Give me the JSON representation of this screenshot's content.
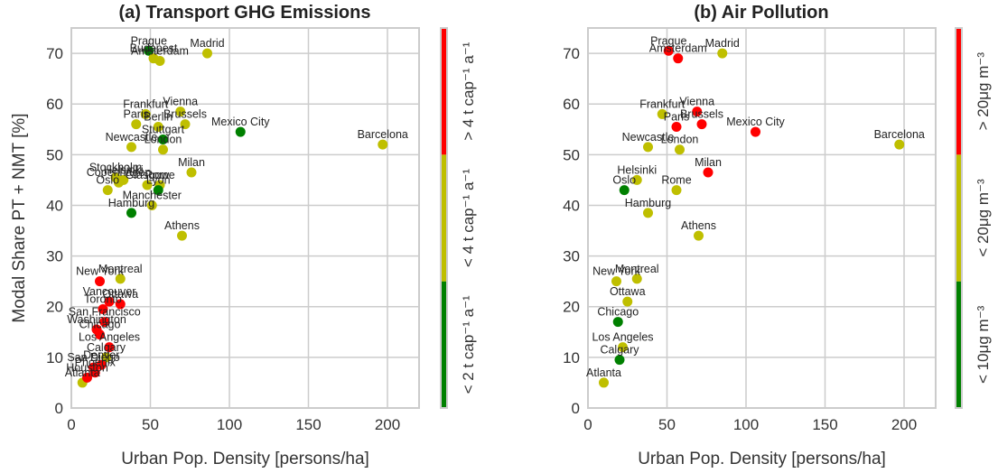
{
  "chart_data": [
    {
      "type": "scatter",
      "title": "(a) Transport GHG Emissions",
      "xlabel": "Urban Pop. Density [persons/ha]",
      "ylabel": "Modal Share PT + NMT [%]",
      "xlim": [
        0,
        220
      ],
      "ylim": [
        0,
        75
      ],
      "xticks": [
        0,
        50,
        100,
        150,
        200
      ],
      "yticks": [
        0,
        10,
        20,
        30,
        40,
        50,
        60,
        70
      ],
      "grid": true,
      "colorbar": {
        "segments": [
          {
            "color": "#008000",
            "label": "< 2 t cap⁻¹ a⁻¹"
          },
          {
            "color": "#bfbf00",
            "label": "< 4 t cap⁻¹ a⁻¹"
          },
          {
            "color": "#ff0000",
            "label": "> 4 t cap⁻¹ a⁻¹"
          }
        ]
      },
      "points": [
        {
          "label": "Prague",
          "x": 49,
          "y": 70.5,
          "color": "#008000"
        },
        {
          "label": "Budapest",
          "x": 52,
          "y": 69,
          "color": "#bfbf00"
        },
        {
          "label": "Amsterdam",
          "x": 56,
          "y": 68.5,
          "color": "#bfbf00"
        },
        {
          "label": "Madrid",
          "x": 86,
          "y": 70,
          "color": "#bfbf00"
        },
        {
          "label": "Frankfurt",
          "x": 47,
          "y": 58,
          "color": "#bfbf00"
        },
        {
          "label": "Vienna",
          "x": 69,
          "y": 58.5,
          "color": "#bfbf00"
        },
        {
          "label": "Paris",
          "x": 41,
          "y": 56,
          "color": "#bfbf00"
        },
        {
          "label": "Berlin",
          "x": 55,
          "y": 55.5,
          "color": "#bfbf00"
        },
        {
          "label": "Brussels",
          "x": 72,
          "y": 56,
          "color": "#bfbf00"
        },
        {
          "label": "Stuttgart",
          "x": 58,
          "y": 53,
          "color": "#008000"
        },
        {
          "label": "Mexico City",
          "x": 107,
          "y": 54.5,
          "color": "#008000"
        },
        {
          "label": "Barcelona",
          "x": 197,
          "y": 52,
          "color": "#bfbf00"
        },
        {
          "label": "Newcastle",
          "x": 38,
          "y": 51.5,
          "color": "#bfbf00"
        },
        {
          "label": "London",
          "x": 58,
          "y": 51,
          "color": "#bfbf00"
        },
        {
          "label": "Milan",
          "x": 76,
          "y": 46.5,
          "color": "#bfbf00"
        },
        {
          "label": "Stockholm",
          "x": 28,
          "y": 45.5,
          "color": "#bfbf00"
        },
        {
          "label": "Helsinki",
          "x": 33,
          "y": 45,
          "color": "#bfbf00"
        },
        {
          "label": "Copenhagen",
          "x": 30,
          "y": 44.5,
          "color": "#bfbf00"
        },
        {
          "label": "Glasgow",
          "x": 48,
          "y": 44,
          "color": "#bfbf00"
        },
        {
          "label": "Rome",
          "x": 56,
          "y": 44,
          "color": "#bfbf00"
        },
        {
          "label": "Lyon",
          "x": 55,
          "y": 43,
          "color": "#008000"
        },
        {
          "label": "Oslo",
          "x": 23,
          "y": 43,
          "color": "#bfbf00"
        },
        {
          "label": "Manchester",
          "x": 51,
          "y": 40,
          "color": "#bfbf00"
        },
        {
          "label": "Hamburg",
          "x": 38,
          "y": 38.5,
          "color": "#008000"
        },
        {
          "label": "Athens",
          "x": 70,
          "y": 34,
          "color": "#bfbf00"
        },
        {
          "label": "New York",
          "x": 18,
          "y": 25,
          "color": "#ff0000"
        },
        {
          "label": "Montreal",
          "x": 31,
          "y": 25.5,
          "color": "#bfbf00"
        },
        {
          "label": "Vancouver",
          "x": 24,
          "y": 21,
          "color": "#ff0000"
        },
        {
          "label": "Ottawa",
          "x": 31,
          "y": 20.5,
          "color": "#ff0000"
        },
        {
          "label": "Toronto",
          "x": 20,
          "y": 19.5,
          "color": "#ff0000"
        },
        {
          "label": "San Francisco",
          "x": 21,
          "y": 17,
          "color": "#ff0000"
        },
        {
          "label": "Washington",
          "x": 16,
          "y": 15.5,
          "color": "#ff0000"
        },
        {
          "label": "Chicago",
          "x": 18,
          "y": 14.5,
          "color": "#ff0000"
        },
        {
          "label": "Los Angeles",
          "x": 24,
          "y": 12,
          "color": "#ff0000"
        },
        {
          "label": "Calgary",
          "x": 22,
          "y": 10,
          "color": "#bfbf00"
        },
        {
          "label": "Denver",
          "x": 19,
          "y": 8.5,
          "color": "#ff0000"
        },
        {
          "label": "San Diego",
          "x": 14,
          "y": 8,
          "color": "#ff0000"
        },
        {
          "label": "Phoenix",
          "x": 15,
          "y": 7,
          "color": "#ff0000"
        },
        {
          "label": "Atlanta",
          "x": 7,
          "y": 5,
          "color": "#bfbf00"
        },
        {
          "label": "Houston",
          "x": 10,
          "y": 6,
          "color": "#ff0000"
        }
      ]
    },
    {
      "type": "scatter",
      "title": "(b) Air Pollution",
      "xlabel": "Urban Pop. Density [persons/ha]",
      "ylabel": "",
      "xlim": [
        0,
        220
      ],
      "ylim": [
        0,
        75
      ],
      "xticks": [
        0,
        50,
        100,
        150,
        200
      ],
      "yticks": [
        0,
        10,
        20,
        30,
        40,
        50,
        60,
        70
      ],
      "grid": true,
      "colorbar": {
        "segments": [
          {
            "color": "#008000",
            "label": "< 10μg m⁻³"
          },
          {
            "color": "#bfbf00",
            "label": "< 20μg m⁻³"
          },
          {
            "color": "#ff0000",
            "label": "> 20μg m⁻³"
          }
        ]
      },
      "points": [
        {
          "label": "Prague",
          "x": 51,
          "y": 70.5,
          "color": "#ff0000"
        },
        {
          "label": "Amsterdam",
          "x": 57,
          "y": 69,
          "color": "#ff0000"
        },
        {
          "label": "Madrid",
          "x": 85,
          "y": 70,
          "color": "#bfbf00"
        },
        {
          "label": "Frankfurt",
          "x": 47,
          "y": 58,
          "color": "#bfbf00"
        },
        {
          "label": "Vienna",
          "x": 69,
          "y": 58.5,
          "color": "#ff0000"
        },
        {
          "label": "Paris",
          "x": 56,
          "y": 55.5,
          "color": "#ff0000"
        },
        {
          "label": "Brussels",
          "x": 72,
          "y": 56,
          "color": "#ff0000"
        },
        {
          "label": "Mexico City",
          "x": 106,
          "y": 54.5,
          "color": "#ff0000"
        },
        {
          "label": "Barcelona",
          "x": 197,
          "y": 52,
          "color": "#bfbf00"
        },
        {
          "label": "Newcastle",
          "x": 38,
          "y": 51.5,
          "color": "#bfbf00"
        },
        {
          "label": "London",
          "x": 58,
          "y": 51,
          "color": "#bfbf00"
        },
        {
          "label": "Milan",
          "x": 76,
          "y": 46.5,
          "color": "#ff0000"
        },
        {
          "label": "Helsinki",
          "x": 31,
          "y": 45,
          "color": "#bfbf00"
        },
        {
          "label": "Oslo",
          "x": 23,
          "y": 43,
          "color": "#008000"
        },
        {
          "label": "Rome",
          "x": 56,
          "y": 43,
          "color": "#bfbf00"
        },
        {
          "label": "Hamburg",
          "x": 38,
          "y": 38.5,
          "color": "#bfbf00"
        },
        {
          "label": "Athens",
          "x": 70,
          "y": 34,
          "color": "#bfbf00"
        },
        {
          "label": "New York",
          "x": 18,
          "y": 25,
          "color": "#bfbf00"
        },
        {
          "label": "Montreal",
          "x": 31,
          "y": 25.5,
          "color": "#bfbf00"
        },
        {
          "label": "Ottawa",
          "x": 25,
          "y": 21,
          "color": "#bfbf00"
        },
        {
          "label": "Chicago",
          "x": 19,
          "y": 17,
          "color": "#008000"
        },
        {
          "label": "Los Angeles",
          "x": 22,
          "y": 12,
          "color": "#bfbf00"
        },
        {
          "label": "Calgary",
          "x": 20,
          "y": 9.5,
          "color": "#008000"
        },
        {
          "label": "Atlanta",
          "x": 10,
          "y": 5,
          "color": "#bfbf00"
        }
      ]
    }
  ]
}
